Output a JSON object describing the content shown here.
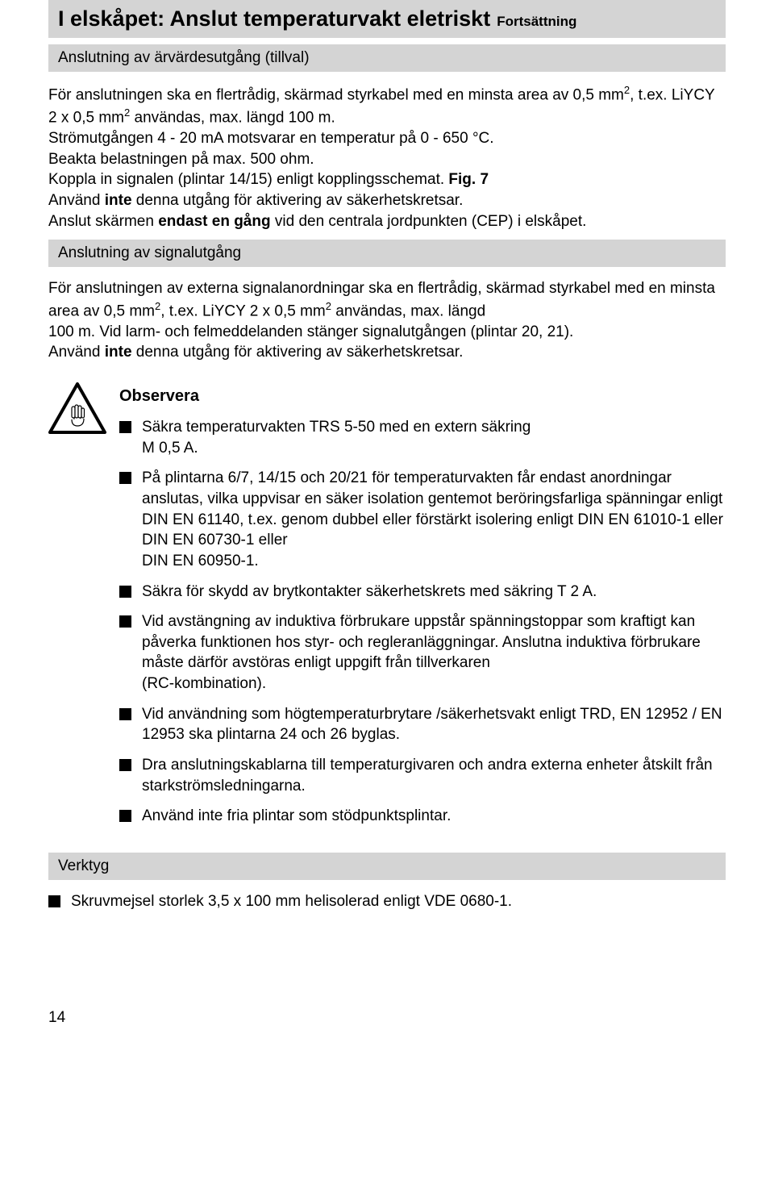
{
  "title": {
    "main": "I elskåpet: Anslut temperaturvakt eletriskt",
    "continuation": "Fortsättning"
  },
  "section1": {
    "header": "Anslutning av ärvärdesutgång (tillval)",
    "p1a": "För anslutningen ska en flertrådig, skärmad styrkabel med en minsta area av 0,5 mm",
    "p1b": ", t.ex. LiYCY 2 x 0,5 mm",
    "p1c": " användas, max. längd 100 m.",
    "p2": "Strömutgången 4 - 20 mA motsvarar en temperatur på 0 - 650 °C.",
    "p3": "Beakta belastningen på max. 500 ohm.",
    "p4a": "Koppla in signalen (plintar 14/15) enligt kopplingsschemat. ",
    "p4b": "Fig. 7",
    "p5a": "Använd ",
    "p5b": "inte",
    "p5c": " denna utgång för aktivering av säkerhetskretsar.",
    "p6a": "Anslut skärmen ",
    "p6b": "endast en gång",
    "p6c": " vid den centrala jordpunkten (CEP) i elskåpet."
  },
  "section2": {
    "header": "Anslutning av signalutgång",
    "p1a": "För anslutningen av externa signalanordningar ska en flertrådig, skärmad styrkabel med en minsta area av 0,5 mm",
    "p1b": ", t.ex. LiYCY 2 x 0,5 mm",
    "p1c": " användas, max. längd",
    "p2": "100 m. Vid larm- och felmeddelanden stänger signalutgången (plintar 20, 21).",
    "p3a": "Använd ",
    "p3b": "inte",
    "p3c": " denna utgång för aktivering av säkerhetskretsar."
  },
  "observera": {
    "title": "Observera",
    "items": [
      "Säkra temperaturvakten TRS 5-50 med en extern säkring\nM 0,5 A.",
      "På plintarna 6/7, 14/15 och 20/21 för temperaturvakten får endast anordningar anslutas, vilka uppvisar en säker isolation gentemot beröringsfarliga spänningar enligt DIN EN 61140, t.ex. genom dubbel eller förstärkt isolering enligt DIN EN 61010-1 eller DIN EN 60730-1 eller\nDIN EN 60950-1.",
      "Säkra för skydd av brytkontakter säkerhetskrets med säkring T 2 A.",
      "Vid avstängning av induktiva förbrukare uppstår spänningstoppar som kraftigt kan påverka funktionen hos styr- och regleranläggningar. Anslutna induktiva förbrukare måste därför avstöras enligt uppgift från tillverkaren\n(RC-kombination).",
      "Vid användning som högtemperaturbrytare /säkerhetsvakt enligt TRD, EN 12952 / EN 12953 ska plintarna 24 och 26 byglas.",
      "Dra anslutningskablarna till temperaturgivaren och andra externa enheter åtskilt från starkströmsledningarna.",
      "Använd inte fria plintar som stödpunktsplintar."
    ]
  },
  "verktyg": {
    "header": "Verktyg",
    "item": "Skruvmejsel storlek 3,5 x 100 mm helisolerad enligt VDE 0680-1."
  },
  "pageNumber": "14"
}
